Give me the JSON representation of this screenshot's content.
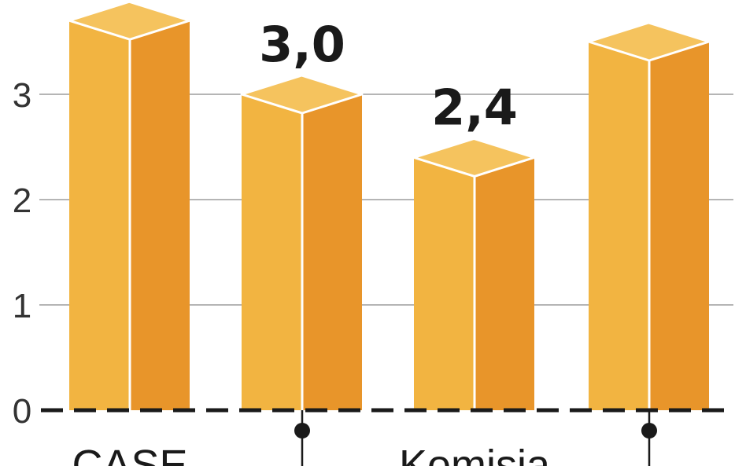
{
  "chart_data": {
    "type": "bar",
    "title": "",
    "xlabel": "",
    "ylabel": "",
    "ylim": [
      0,
      4
    ],
    "yticks": [
      "0",
      "1",
      "2",
      "3"
    ],
    "grid": true,
    "bar_style": "3d-box",
    "categories": [
      "CASE",
      "",
      "Komisja",
      ""
    ],
    "values": [
      3.7,
      3.0,
      2.4,
      3.5
    ],
    "data_labels": [
      "",
      "3,0",
      "2,4",
      ""
    ],
    "markers_below": [
      false,
      true,
      false,
      true
    ],
    "colors": {
      "front": "#f2b441",
      "side": "#e8952a",
      "top": "#f5c35e",
      "edge": "#ffffff",
      "grid": "#b5b5b5",
      "axis": "#1a1a1a",
      "marker": "#1a1a1a"
    }
  }
}
